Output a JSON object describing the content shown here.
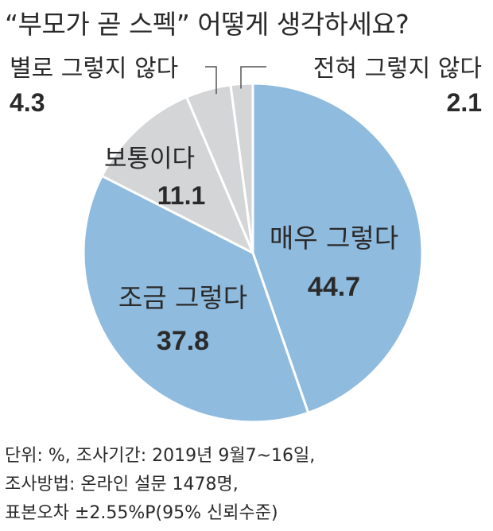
{
  "title": "“부모가 곧 스펙” 어떻게 생각하세요?",
  "chart_data": {
    "type": "pie",
    "categories": [
      "매우 그렇다",
      "조금 그렇다",
      "보통이다",
      "별로 그렇지 않다",
      "전혀 그렇지 않다"
    ],
    "values": [
      44.7,
      37.8,
      11.1,
      4.3,
      2.1
    ],
    "value_labels": [
      "44.7",
      "37.8",
      "11.1",
      "4.3",
      "2.1"
    ],
    "colors": [
      "#8fbbdf",
      "#8fbbdf",
      "#d4d5d7",
      "#d4d5d7",
      "#d4d5d7"
    ],
    "unit": "%"
  },
  "notes": [
    "단위: %, 조사기간: 2019년 9월7~16일,",
    "조사방법: 온라인 설문 1478명,",
    "표본오차 ±2.55%P(95% 신뢰수준)"
  ]
}
